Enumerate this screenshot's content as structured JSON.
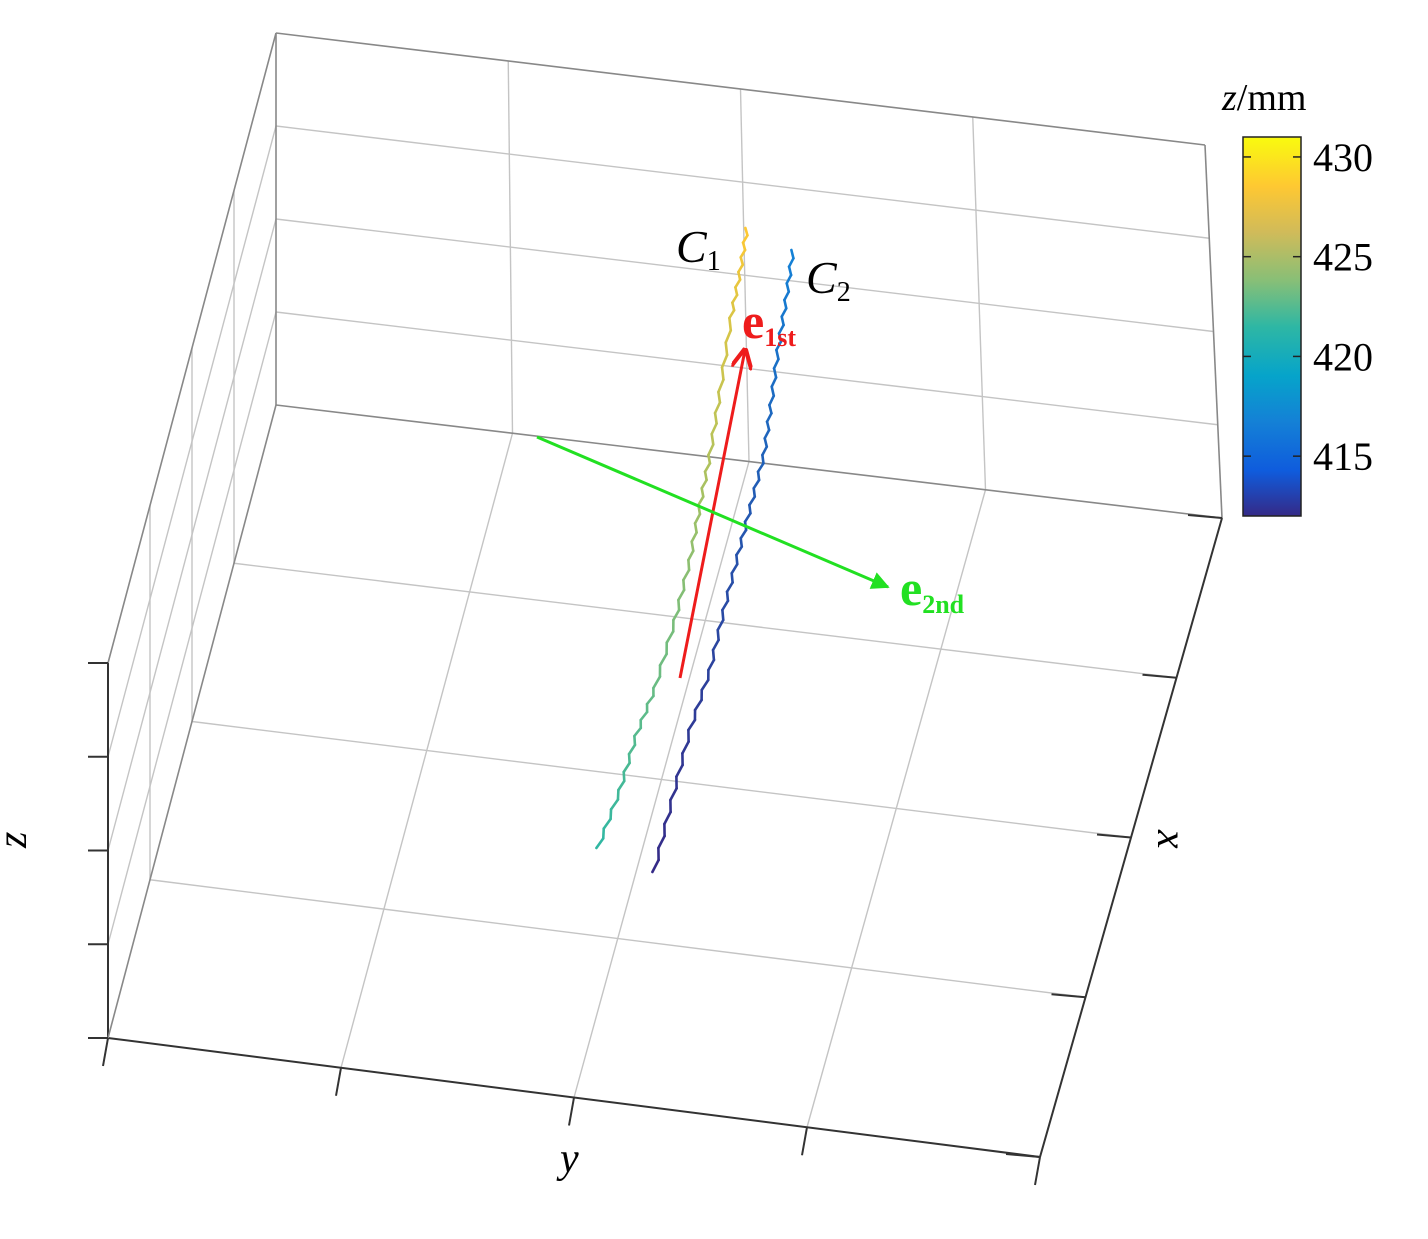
{
  "chart_data": {
    "type": "scatter",
    "projection": "3d",
    "grid": true,
    "axes": {
      "xlabel": "x",
      "ylabel": "y",
      "zlabel": "z"
    },
    "colorbar": {
      "label_var": "z",
      "label_unit": "/mm",
      "ticks": [
        430,
        425,
        420,
        415
      ],
      "range": [
        412,
        431
      ],
      "colormap": "parula",
      "colors": [
        "#352a87",
        "#0f5cdd",
        "#1481d6",
        "#06a4ca",
        "#2eb7a4",
        "#87bf77",
        "#d1bb59",
        "#fec832",
        "#f9fb0e"
      ]
    },
    "series": [
      {
        "name": "C",
        "subscript": "1",
        "z_range": [
          419,
          428
        ],
        "color_start": "#2eb7a4",
        "color_end": "#fec832"
      },
      {
        "name": "C",
        "subscript": "2",
        "z_range": [
          412,
          418
        ],
        "color_start": "#352a87",
        "color_end": "#1481d6"
      }
    ],
    "vectors": [
      {
        "symbol": "e",
        "subscript": "1st",
        "color": "#ee1c1c"
      },
      {
        "symbol": "e",
        "subscript": "2nd",
        "color": "#22e022"
      }
    ]
  }
}
